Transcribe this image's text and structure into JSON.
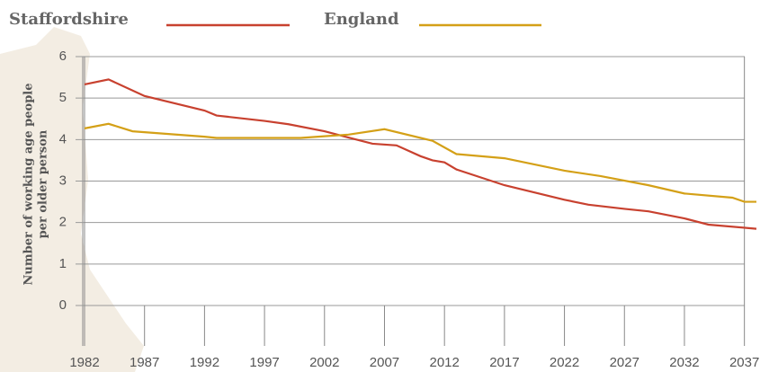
{
  "chart_data": {
    "type": "line",
    "y_label": [
      "Number of working age people",
      "per older person"
    ],
    "xlim": [
      1982,
      2038
    ],
    "xticks": [
      1982,
      1987,
      1992,
      1997,
      2002,
      2007,
      2012,
      2017,
      2022,
      2027,
      2032,
      2037
    ],
    "ylim": [
      0,
      6
    ],
    "yticks": [
      0,
      1,
      2,
      3,
      4,
      5,
      6
    ],
    "grid": true,
    "series": [
      {
        "name": "Staffordshire",
        "color": "#c8412f",
        "x": [
          1982,
          1984,
          1987,
          1992,
          1993,
          1997,
          1999,
          2002,
          2004,
          2006,
          2008,
          2010,
          2011,
          2012,
          2013,
          2017,
          2022,
          2024,
          2027,
          2029,
          2032,
          2034,
          2038
        ],
        "values": [
          5.33,
          5.45,
          5.05,
          4.7,
          4.58,
          4.45,
          4.37,
          4.2,
          4.05,
          3.9,
          3.86,
          3.6,
          3.5,
          3.45,
          3.28,
          2.9,
          2.55,
          2.43,
          2.33,
          2.27,
          2.1,
          1.95,
          1.85
        ]
      },
      {
        "name": "England",
        "color": "#d4a017",
        "x": [
          1982,
          1984,
          1986,
          1992,
          1993,
          2000,
          2002,
          2004,
          2007,
          2011,
          2013,
          2017,
          2022,
          2025,
          2029,
          2032,
          2036,
          2037,
          2038
        ],
        "values": [
          4.27,
          4.38,
          4.2,
          4.07,
          4.04,
          4.04,
          4.08,
          4.12,
          4.25,
          3.97,
          3.65,
          3.55,
          3.25,
          3.12,
          2.9,
          2.7,
          2.6,
          2.5,
          2.5
        ]
      }
    ]
  }
}
